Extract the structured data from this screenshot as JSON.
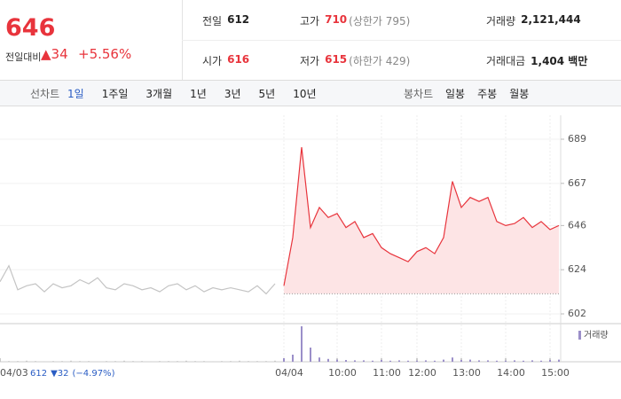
{
  "header": {
    "price": "646",
    "change_label": "전일대비",
    "change": "▲34",
    "change_pct": "+5.56%"
  },
  "info": [
    {
      "label": "전일",
      "value": "612"
    },
    {
      "label": "고가",
      "value": "710",
      "note": "(상한가 795)"
    },
    {
      "label": "거래량",
      "value": "2,121,444"
    },
    {
      "label": "시가",
      "value": "616"
    },
    {
      "label": "저가",
      "value": "615",
      "note": "(하한가 429)"
    },
    {
      "label": "거래대금",
      "value": "1,404 백만"
    }
  ],
  "tabs": {
    "line_label": "선차트",
    "line_periods": [
      "1일",
      "1주일",
      "3개월",
      "1년",
      "3년",
      "5년",
      "10년"
    ],
    "active": 0,
    "candle_label": "봉차트",
    "candle_periods": [
      "일봉",
      "주봉",
      "월봉"
    ]
  },
  "footer": {
    "price": "612",
    "change": "▼32",
    "change_pct": "(−4.97%)"
  },
  "chart_data": {
    "type": "line",
    "categories": [
      "04/03",
      null,
      null,
      null,
      null,
      null,
      null,
      null,
      null,
      null,
      null,
      null,
      null,
      null,
      null,
      null,
      null,
      null,
      null,
      null,
      null,
      null,
      null,
      null,
      null,
      null,
      null,
      null,
      null,
      null,
      null,
      null,
      "04/04",
      null,
      null,
      null,
      null,
      null,
      "10:00",
      null,
      null,
      null,
      null,
      "11:00",
      null,
      null,
      null,
      "12:00",
      null,
      null,
      null,
      null,
      "13:00",
      null,
      null,
      null,
      null,
      "14:00",
      null,
      null,
      null,
      null,
      "15:00",
      null
    ],
    "series": [
      {
        "color": "#c4c4c4",
        "values": [
          618,
          626,
          614,
          616,
          617,
          613,
          617,
          615,
          616,
          619,
          617,
          620,
          615,
          614,
          617,
          616,
          614,
          615,
          613,
          616,
          617,
          614,
          616,
          613,
          615,
          614,
          615,
          614,
          613,
          616,
          612,
          617,
          null,
          null,
          null,
          null,
          null,
          null,
          null,
          null,
          null,
          null,
          null,
          null,
          null,
          null,
          null,
          null,
          null,
          null,
          null,
          null,
          null,
          null,
          null,
          null,
          null,
          null,
          null,
          null,
          null,
          null,
          null,
          null
        ]
      },
      {
        "color": "#e8343c",
        "fill": "#fde4e5",
        "values": [
          null,
          null,
          null,
          null,
          null,
          null,
          null,
          null,
          null,
          null,
          null,
          null,
          null,
          null,
          null,
          null,
          null,
          null,
          null,
          null,
          null,
          null,
          null,
          null,
          null,
          null,
          null,
          null,
          null,
          null,
          null,
          null,
          616,
          640,
          685,
          645,
          655,
          650,
          652,
          645,
          648,
          640,
          642,
          635,
          632,
          630,
          628,
          633,
          635,
          632,
          640,
          668,
          655,
          660,
          658,
          660,
          648,
          646,
          647,
          650,
          645,
          648,
          644,
          646
        ]
      },
      {
        "name": "거래량",
        "axis": "y2",
        "color": "#9b8fc9",
        "values": [
          3,
          2,
          2,
          3,
          2,
          1,
          2,
          2,
          3,
          2,
          2,
          1,
          2,
          2,
          3,
          2,
          2,
          1,
          2,
          2,
          2,
          3,
          2,
          2,
          1,
          2,
          2,
          3,
          2,
          2,
          2,
          3,
          10,
          20,
          100,
          40,
          12,
          8,
          6,
          5,
          4,
          4,
          3,
          5,
          3,
          4,
          3,
          3,
          4,
          3,
          6,
          12,
          5,
          6,
          4,
          4,
          3,
          3,
          4,
          3,
          4,
          3,
          5,
          6
        ]
      }
    ],
    "ylim": [
      602,
      689
    ],
    "yticks": [
      602,
      624,
      646,
      667,
      689
    ],
    "y2lim": [
      0,
      100
    ],
    "baseline": 612,
    "grid": true
  }
}
